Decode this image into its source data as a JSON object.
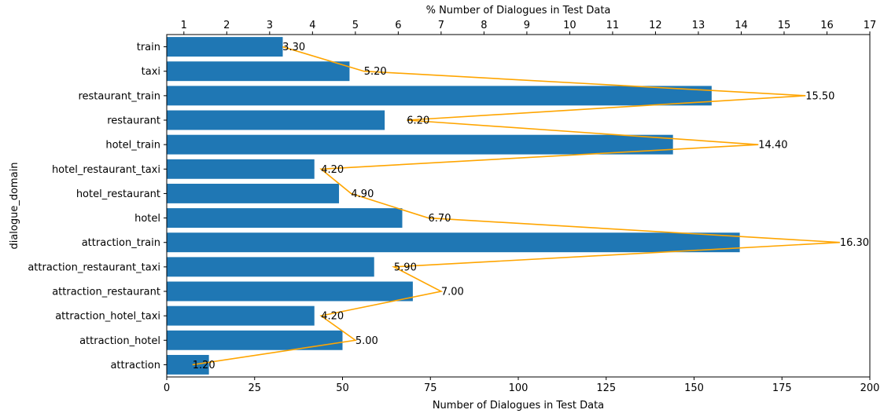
{
  "chart_data": {
    "type": "bar",
    "orientation": "horizontal",
    "categories": [
      "attraction",
      "attraction_hotel",
      "attraction_hotel_taxi",
      "attraction_restaurant",
      "attraction_restaurant_taxi",
      "attraction_train",
      "hotel",
      "hotel_restaurant",
      "hotel_restaurant_taxi",
      "hotel_train",
      "restaurant",
      "restaurant_train",
      "taxi",
      "train"
    ],
    "series": [
      {
        "axis": "bottom",
        "type": "bar",
        "values": [
          12,
          50,
          42,
          70,
          59,
          163,
          67,
          49,
          42,
          144,
          62,
          155,
          52,
          33
        ]
      },
      {
        "axis": "top",
        "type": "line",
        "values": [
          1.2,
          5.0,
          4.2,
          7.0,
          5.9,
          16.3,
          6.7,
          4.9,
          4.2,
          14.4,
          6.2,
          15.5,
          5.2,
          3.3
        ],
        "labels": [
          "1.20",
          "5.00",
          "4.20",
          "7.00",
          "5.90",
          "16.30",
          "6.70",
          "4.90",
          "4.20",
          "14.40",
          "6.20",
          "15.50",
          "5.20",
          "3.30"
        ]
      }
    ],
    "xlabel": "Number of Dialogues in Test Data",
    "xlabel_top": "% Number of Dialogues in Test Data",
    "ylabel": "dialogue_domain",
    "xlim": [
      0,
      200
    ],
    "xticks": [
      "0",
      "25",
      "50",
      "75",
      "100",
      "125",
      "150",
      "175",
      "200"
    ],
    "xlim_top": [
      0.6,
      17
    ],
    "xticks_top": [
      "1",
      "2",
      "3",
      "4",
      "5",
      "6",
      "7",
      "8",
      "9",
      "10",
      "11",
      "12",
      "13",
      "14",
      "15",
      "16",
      "17"
    ],
    "grid": false,
    "colors": {
      "bar": "#1f77b4",
      "line": "#ffa500",
      "text": "#000000"
    }
  }
}
